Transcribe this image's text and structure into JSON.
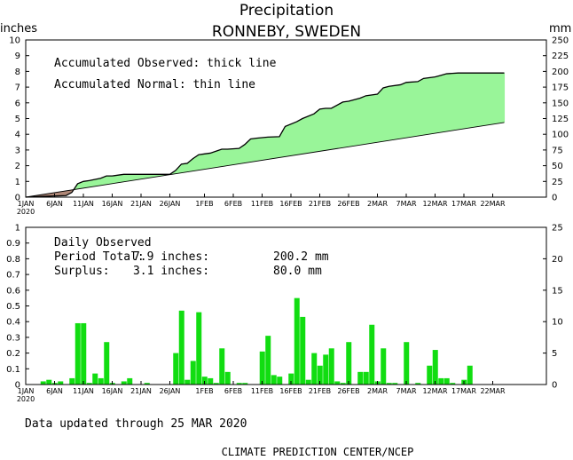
{
  "title": "Precipitation",
  "subtitle": "RONNEBY, SWEDEN",
  "footer_updated": "Data updated through 25 MAR 2020",
  "footer_org": "CLIMATE PREDICTION CENTER/NCEP",
  "colors": {
    "surplus_fill": "#99f599",
    "deficit_fill": "#b08878",
    "bar_fill": "#11dd11",
    "axis": "#000000"
  },
  "chart_data": [
    {
      "type": "area",
      "panel": "accumulated",
      "ylabel_left": "inches",
      "ylabel_right": "mm",
      "ylim": [
        0,
        10
      ],
      "ylim_right": [
        0,
        250
      ],
      "yticks_left": [
        "0",
        "1",
        "2",
        "3",
        "4",
        "5",
        "6",
        "7",
        "8",
        "9",
        "10"
      ],
      "yticks_right": [
        "0",
        "25",
        "50",
        "75",
        "100",
        "125",
        "150",
        "175",
        "200",
        "225",
        "250"
      ],
      "x_day_range": [
        1,
        85
      ],
      "x_tick_days": [
        1,
        6,
        11,
        16,
        21,
        26,
        32,
        37,
        42,
        47,
        52,
        57,
        62,
        67,
        72,
        77,
        82
      ],
      "x_tick_labels": [
        "1JAN",
        "6JAN",
        "11JAN",
        "16JAN",
        "21JAN",
        "26JAN",
        "1FEB",
        "6FEB",
        "11FEB",
        "16FEB",
        "21FEB",
        "26FEB",
        "2MAR",
        "7MAR",
        "12MAR",
        "17MAR",
        "22MAR"
      ],
      "x_year_label": "2020",
      "annotations": [
        "Accumulated Observed: thick line",
        "Accumulated Normal: thin line"
      ],
      "series": [
        {
          "name": "Accumulated Observed",
          "x": [
            1,
            4,
            8,
            9,
            10,
            11,
            12,
            14,
            15,
            16,
            18,
            20,
            22,
            24,
            26,
            27,
            28,
            29,
            30,
            31,
            32,
            33,
            35,
            36,
            38,
            39,
            40,
            41,
            43,
            45,
            46,
            48,
            49,
            51,
            52,
            53,
            54,
            56,
            57,
            59,
            60,
            62,
            63,
            64,
            66,
            67,
            69,
            70,
            72,
            73,
            74,
            76,
            77,
            78,
            79,
            80,
            84
          ],
          "y": [
            0.0,
            0.05,
            0.1,
            0.3,
            0.85,
            1.0,
            1.05,
            1.2,
            1.35,
            1.35,
            1.45,
            1.45,
            1.45,
            1.45,
            1.45,
            1.7,
            2.1,
            2.15,
            2.45,
            2.7,
            2.75,
            2.8,
            3.05,
            3.05,
            3.1,
            3.35,
            3.7,
            3.75,
            3.82,
            3.85,
            4.5,
            4.8,
            5.0,
            5.3,
            5.6,
            5.65,
            5.65,
            6.05,
            6.1,
            6.3,
            6.45,
            6.55,
            6.95,
            7.05,
            7.15,
            7.3,
            7.35,
            7.55,
            7.65,
            7.75,
            7.85,
            7.9,
            7.9,
            7.9,
            7.9,
            7.9,
            7.9
          ]
        },
        {
          "name": "Accumulated Normal",
          "x": [
            1,
            84
          ],
          "y": [
            0.0,
            4.75
          ]
        }
      ]
    },
    {
      "type": "bar",
      "panel": "daily",
      "ylim": [
        0,
        1
      ],
      "ylim_right": [
        0,
        25
      ],
      "yticks_left": [
        "0",
        "0.1",
        "0.2",
        "0.3",
        "0.4",
        "0.5",
        "0.6",
        "0.7",
        "0.8",
        "0.9",
        "1"
      ],
      "yticks_right": [
        "0",
        "5",
        "10",
        "15",
        "20",
        "25"
      ],
      "annotation_header": "Daily Observed",
      "summary": [
        {
          "label": "Period Total:",
          "inches": "7.9 inches:",
          "mm": "200.2 mm"
        },
        {
          "label": "Surplus:",
          "inches": "3.1 inches:",
          "mm": "80.0 mm"
        }
      ],
      "days": [
        4,
        5,
        6,
        7,
        9,
        10,
        11,
        12,
        13,
        14,
        15,
        16,
        18,
        19,
        22,
        27,
        28,
        29,
        30,
        31,
        32,
        33,
        34,
        35,
        36,
        38,
        39,
        42,
        43,
        44,
        45,
        47,
        48,
        49,
        50,
        51,
        52,
        53,
        54,
        55,
        56,
        57,
        59,
        60,
        61,
        62,
        63,
        64,
        65,
        67,
        69,
        71,
        72,
        73,
        74,
        75,
        77,
        78
      ],
      "values": [
        0.02,
        0.03,
        0.01,
        0.02,
        0.04,
        0.39,
        0.39,
        0.01,
        0.07,
        0.04,
        0.27,
        0.01,
        0.02,
        0.04,
        0.01,
        0.2,
        0.47,
        0.03,
        0.15,
        0.46,
        0.05,
        0.04,
        0.01,
        0.23,
        0.08,
        0.01,
        0.01,
        0.21,
        0.31,
        0.06,
        0.05,
        0.07,
        0.55,
        0.43,
        0.03,
        0.2,
        0.12,
        0.19,
        0.23,
        0.02,
        0.01,
        0.27,
        0.08,
        0.08,
        0.38,
        0.02,
        0.23,
        0.01,
        0.01,
        0.27,
        0.01,
        0.12,
        0.22,
        0.04,
        0.04,
        0.01,
        0.03,
        0.12
      ]
    }
  ]
}
